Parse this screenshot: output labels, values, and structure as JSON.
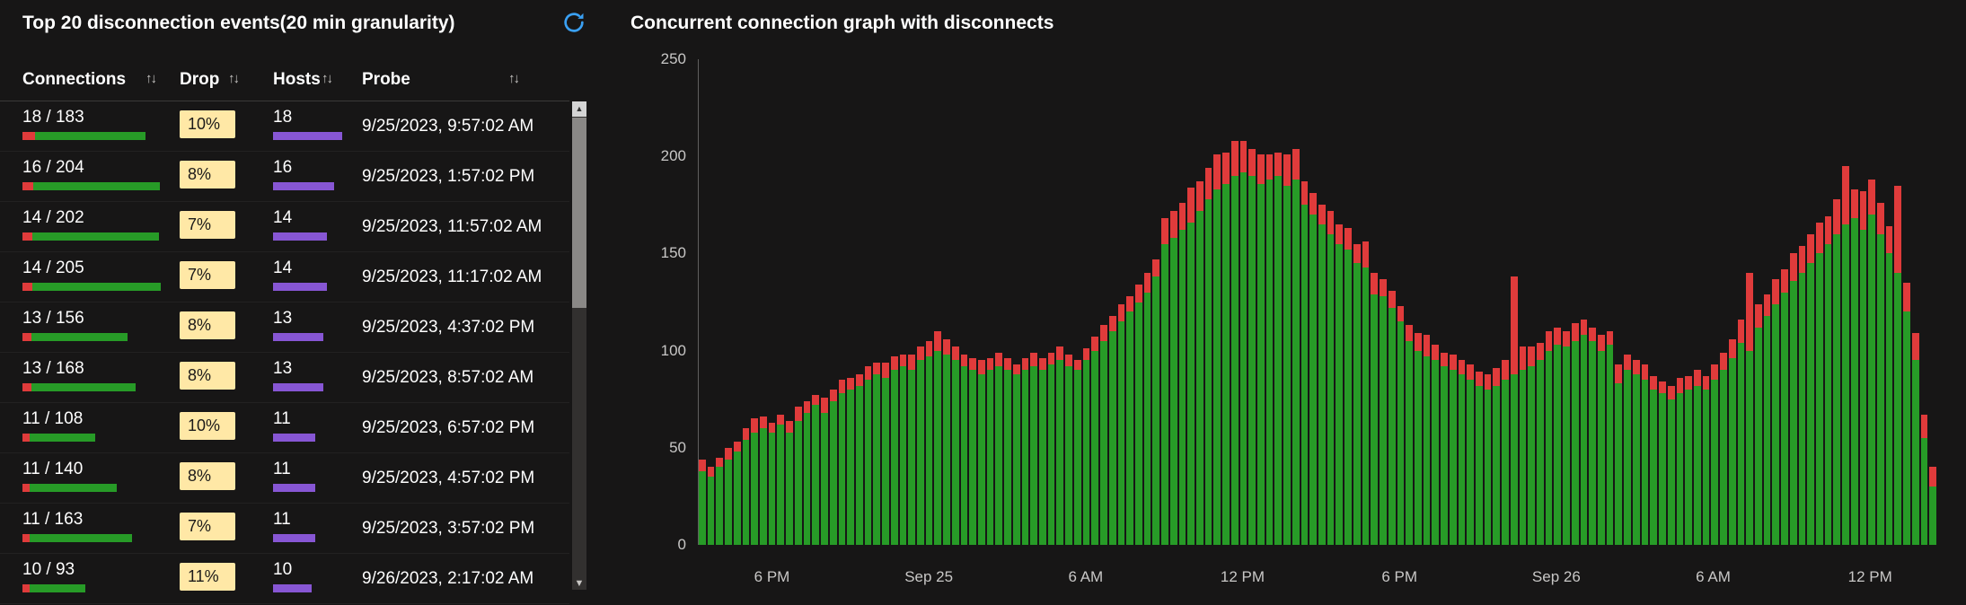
{
  "left_panel": {
    "title": "Top 20 disconnection events(20 min granularity)",
    "columns": [
      {
        "label": "Connections",
        "sort": "↑↓"
      },
      {
        "label": "Drop",
        "sort": "↑↓"
      },
      {
        "label": "Hosts",
        "sort": "↑↓"
      },
      {
        "label": "Probe",
        "sort": "↑↓"
      }
    ],
    "rows": [
      {
        "connections": "18 / 183",
        "drops": 18,
        "total": 183,
        "drop_pct": "10%",
        "hosts": 18,
        "probe": "9/25/2023, 9:57:02 AM"
      },
      {
        "connections": "16 / 204",
        "drops": 16,
        "total": 204,
        "drop_pct": "8%",
        "hosts": 16,
        "probe": "9/25/2023, 1:57:02 PM"
      },
      {
        "connections": "14 / 202",
        "drops": 14,
        "total": 202,
        "drop_pct": "7%",
        "hosts": 14,
        "probe": "9/25/2023, 11:57:02 AM"
      },
      {
        "connections": "14 / 205",
        "drops": 14,
        "total": 205,
        "drop_pct": "7%",
        "hosts": 14,
        "probe": "9/25/2023, 11:17:02 AM"
      },
      {
        "connections": "13 / 156",
        "drops": 13,
        "total": 156,
        "drop_pct": "8%",
        "hosts": 13,
        "probe": "9/25/2023, 4:37:02 PM"
      },
      {
        "connections": "13 / 168",
        "drops": 13,
        "total": 168,
        "drop_pct": "8%",
        "hosts": 13,
        "probe": "9/25/2023, 8:57:02 AM"
      },
      {
        "connections": "11 / 108",
        "drops": 11,
        "total": 108,
        "drop_pct": "10%",
        "hosts": 11,
        "probe": "9/25/2023, 6:57:02 PM"
      },
      {
        "connections": "11 / 140",
        "drops": 11,
        "total": 140,
        "drop_pct": "8%",
        "hosts": 11,
        "probe": "9/25/2023, 4:57:02 PM"
      },
      {
        "connections": "11 / 163",
        "drops": 11,
        "total": 163,
        "drop_pct": "7%",
        "hosts": 11,
        "probe": "9/25/2023, 3:57:02 PM"
      },
      {
        "connections": "10 / 93",
        "drops": 10,
        "total": 93,
        "drop_pct": "11%",
        "hosts": 10,
        "probe": "9/26/2023, 2:17:02 AM"
      }
    ],
    "scrollbar": {
      "up": "▲",
      "down": "▼"
    }
  },
  "right_panel": {
    "title": "Concurrent connection graph with disconnects"
  },
  "chart_data": {
    "type": "bar",
    "stacked": true,
    "title": "Concurrent connection graph with disconnects",
    "ylim": [
      0,
      250
    ],
    "y_ticks": [
      0,
      50,
      100,
      150,
      200,
      250
    ],
    "x_ticks": [
      {
        "label": "6 PM",
        "index": 8
      },
      {
        "label": "Sep 25",
        "index": 26
      },
      {
        "label": "6 AM",
        "index": 44
      },
      {
        "label": "12 PM",
        "index": 62
      },
      {
        "label": "6 PM",
        "index": 80
      },
      {
        "label": "Sep 26",
        "index": 98
      },
      {
        "label": "6 AM",
        "index": 116
      },
      {
        "label": "12 PM",
        "index": 134
      }
    ],
    "legend": false,
    "grid": false,
    "series": [
      {
        "name": "connections",
        "color": "#279b27",
        "values": [
          38,
          35,
          40,
          44,
          48,
          54,
          58,
          60,
          58,
          62,
          58,
          64,
          68,
          72,
          68,
          74,
          78,
          80,
          82,
          85,
          88,
          86,
          90,
          92,
          90,
          95,
          97,
          100,
          98,
          95,
          92,
          90,
          88,
          90,
          92,
          90,
          88,
          90,
          92,
          90,
          93,
          95,
          92,
          90,
          95,
          100,
          105,
          110,
          115,
          120,
          125,
          130,
          138,
          155,
          158,
          162,
          166,
          172,
          178,
          183,
          186,
          190,
          192,
          190,
          186,
          188,
          190,
          185,
          188,
          175,
          170,
          165,
          160,
          155,
          152,
          145,
          143,
          129,
          128,
          122,
          115,
          105,
          100,
          97,
          95,
          92,
          90,
          88,
          85,
          82,
          80,
          82,
          85,
          88,
          90,
          92,
          95,
          100,
          103,
          102,
          105,
          108,
          105,
          100,
          103,
          83,
          90,
          88,
          85,
          80,
          78,
          75,
          78,
          80,
          82,
          80,
          85,
          90,
          96,
          104,
          100,
          112,
          118,
          124,
          130,
          136,
          140,
          145,
          150,
          155,
          160,
          165,
          168,
          162,
          170,
          160,
          150,
          140,
          120,
          95,
          55,
          30
        ]
      },
      {
        "name": "disconnects",
        "color": "#e03b3b",
        "values": [
          6,
          5,
          5,
          6,
          5,
          6,
          7,
          6,
          5,
          5,
          6,
          7,
          6,
          5,
          8,
          6,
          7,
          6,
          6,
          7,
          6,
          8,
          7,
          6,
          8,
          7,
          8,
          10,
          8,
          7,
          6,
          6,
          7,
          6,
          7,
          6,
          5,
          6,
          7,
          6,
          6,
          7,
          6,
          5,
          6,
          7,
          8,
          8,
          9,
          8,
          9,
          10,
          9,
          13,
          14,
          14,
          18,
          15,
          16,
          18,
          16,
          18,
          16,
          14,
          15,
          13,
          12,
          16,
          16,
          12,
          11,
          10,
          12,
          10,
          11,
          10,
          13,
          11,
          9,
          9,
          8,
          8,
          9,
          11,
          8,
          7,
          8,
          7,
          8,
          7,
          8,
          9,
          10,
          50,
          12,
          10,
          9,
          10,
          9,
          8,
          9,
          8,
          7,
          8,
          7,
          10,
          8,
          7,
          8,
          7,
          6,
          7,
          8,
          7,
          8,
          7,
          8,
          9,
          10,
          12,
          40,
          12,
          11,
          13,
          12,
          14,
          14,
          15,
          16,
          14,
          18,
          30,
          15,
          20,
          18,
          16,
          14,
          45,
          15,
          14,
          12,
          10
        ]
      }
    ]
  },
  "colors": {
    "background": "#171616",
    "green": "#279b27",
    "red": "#e03b3b",
    "purple": "#8756d4",
    "badge_bg": "#ffe8a6",
    "badge_text": "#1b1a19",
    "accent_blue": "#3aa0f3"
  }
}
